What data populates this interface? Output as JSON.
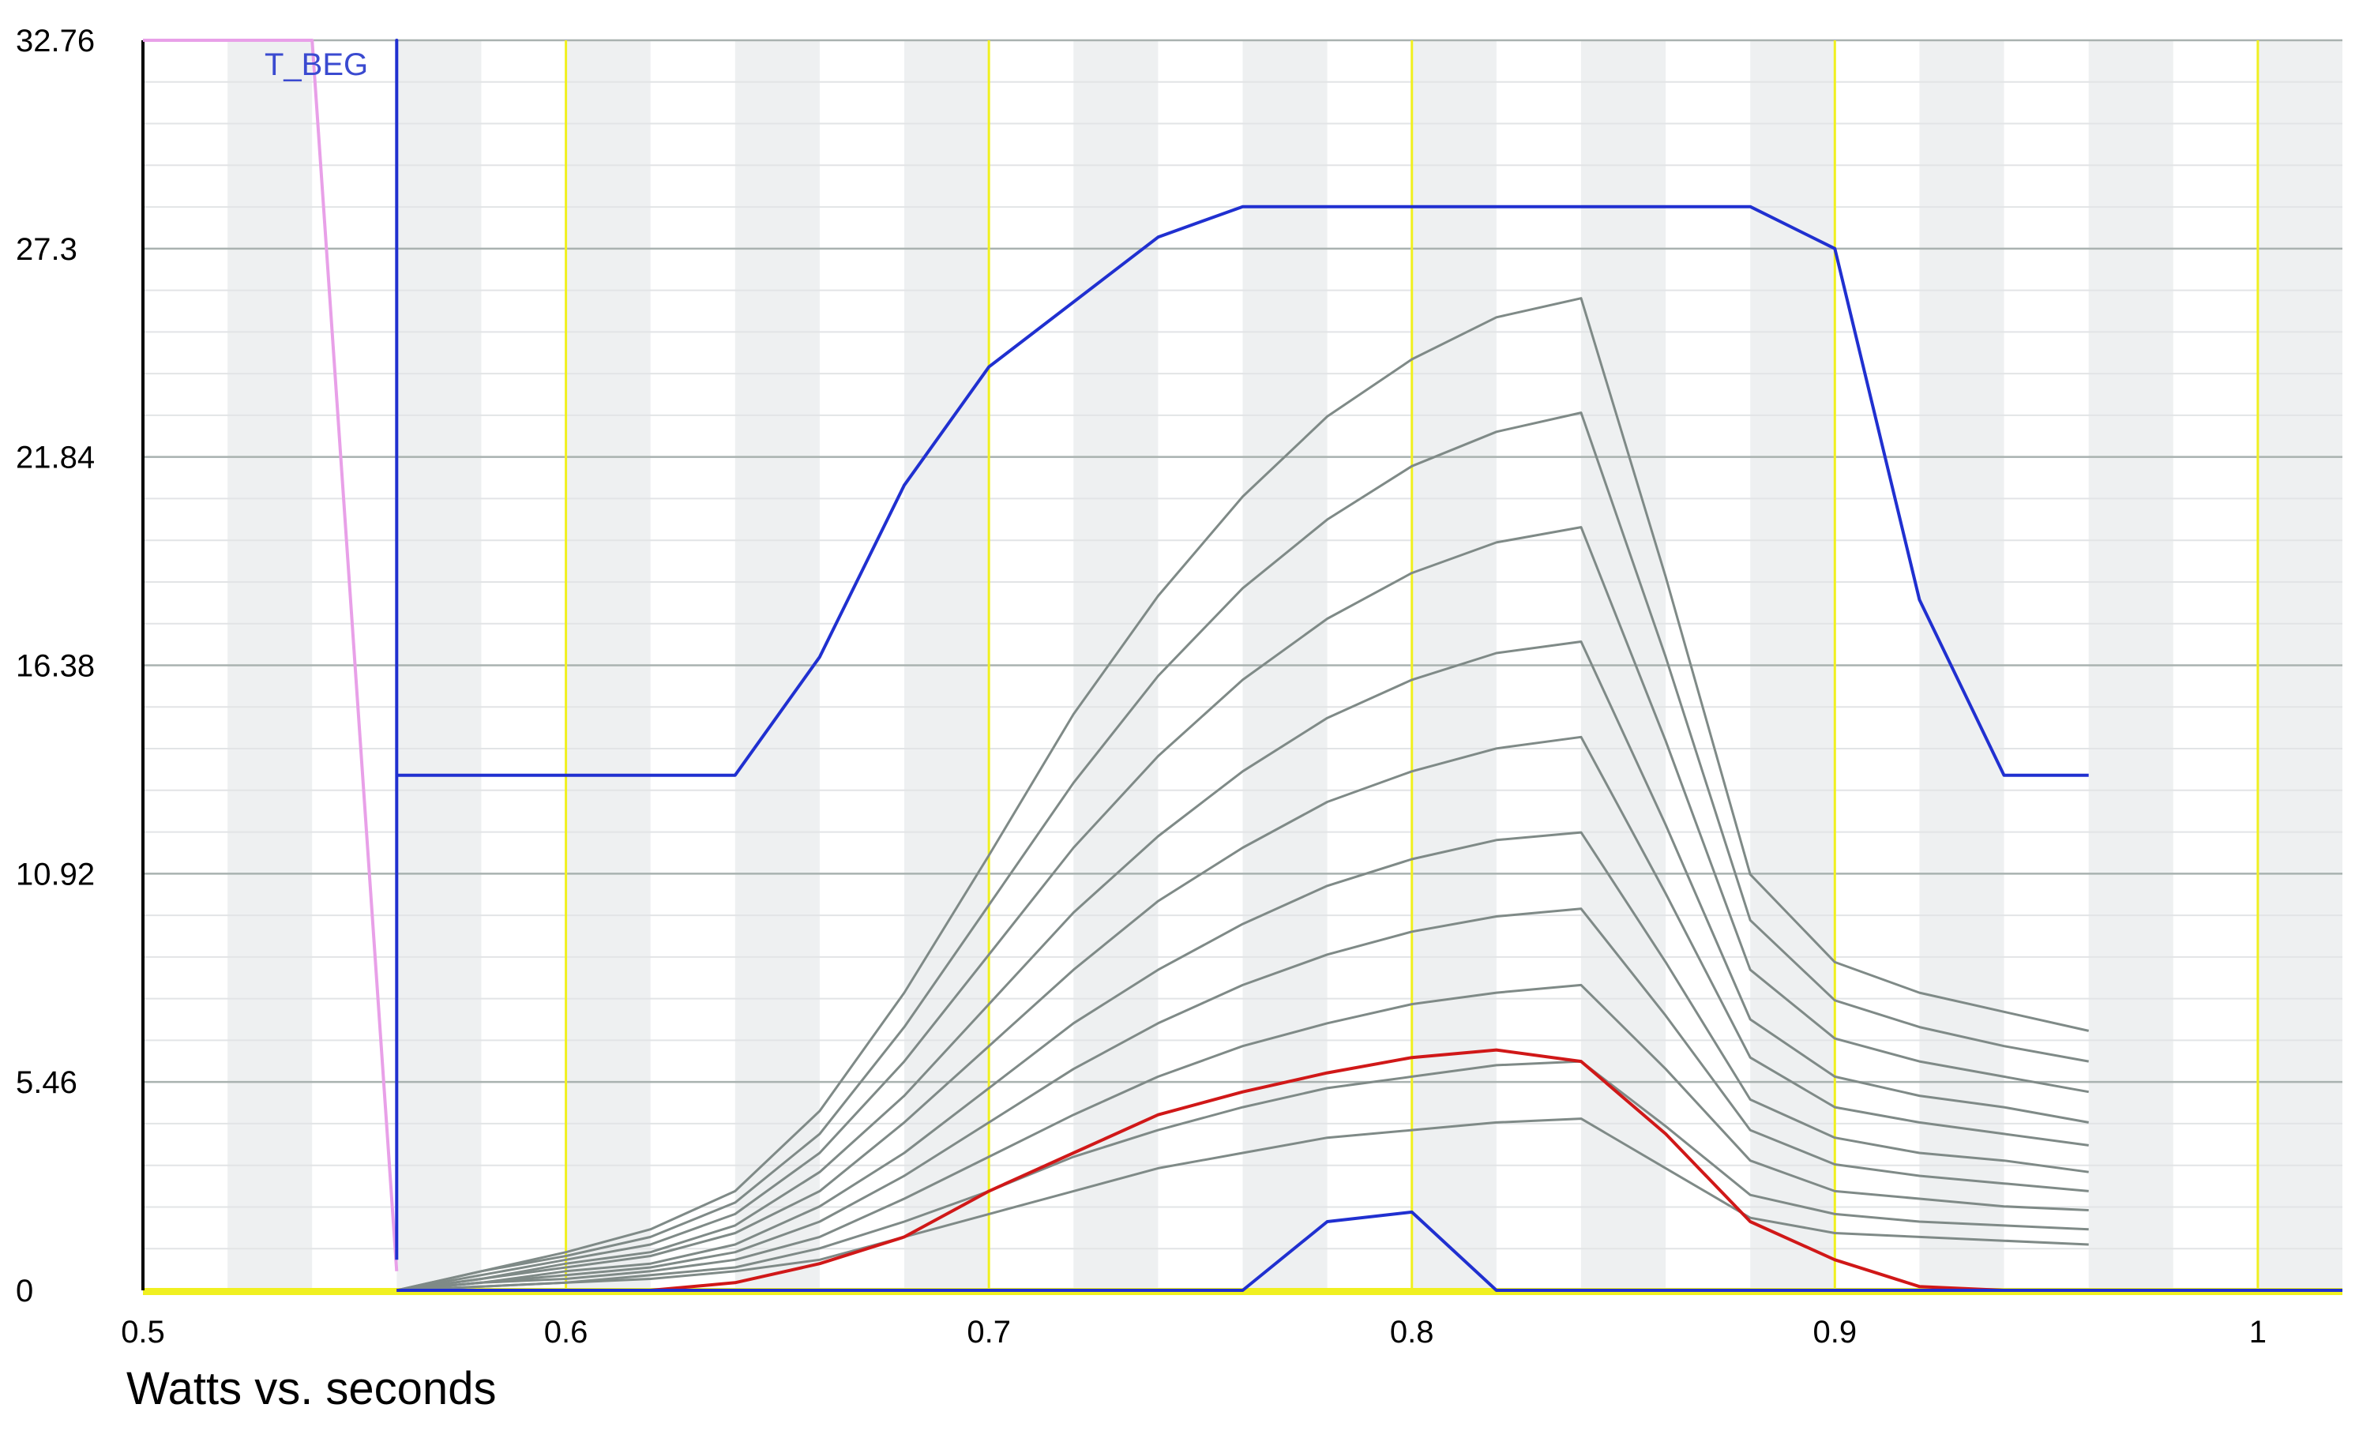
{
  "chart_data": {
    "type": "line",
    "x_label": "Watts vs. seconds",
    "annotation": "T_BEG",
    "xlim": [
      0.5,
      1.02
    ],
    "ylim": [
      0,
      32.76
    ],
    "xticks": [
      0.5,
      0.6,
      0.7,
      0.8,
      0.9,
      1
    ],
    "yticks": [
      0,
      5.46,
      10.92,
      16.38,
      21.84,
      27.3,
      32.76
    ],
    "grid": true,
    "series": [
      {
        "color": "#7f8a87",
        "x": [
          0.56,
          0.58,
          0.6,
          0.62,
          0.64,
          0.66,
          0.68,
          0.7,
          0.72,
          0.74,
          0.76,
          0.78,
          0.8,
          0.82,
          0.84,
          0.86,
          0.88,
          0.9,
          0.92,
          0.94,
          0.96
        ],
        "values": [
          0,
          0.5,
          1,
          1.6,
          2.6,
          4.7,
          7.8,
          11.4,
          15.1,
          18.2,
          20.8,
          22.9,
          24.4,
          25.5,
          26,
          18.7,
          10.9,
          8.6,
          7.8,
          7.3,
          6.8
        ]
      },
      {
        "color": "#7f8a87",
        "x": [
          0.56,
          0.58,
          0.6,
          0.62,
          0.64,
          0.66,
          0.68,
          0.7,
          0.72,
          0.74,
          0.76,
          0.78,
          0.8,
          0.82,
          0.84,
          0.86,
          0.88,
          0.9,
          0.92,
          0.94,
          0.96
        ],
        "values": [
          0,
          0.5,
          0.9,
          1.4,
          2.3,
          4.1,
          6.9,
          10.1,
          13.3,
          16.1,
          18.4,
          20.2,
          21.6,
          22.5,
          23,
          16.6,
          9.7,
          7.6,
          6.9,
          6.4,
          6
        ]
      },
      {
        "color": "#7f8a87",
        "x": [
          0.56,
          0.58,
          0.6,
          0.62,
          0.64,
          0.66,
          0.68,
          0.7,
          0.72,
          0.74,
          0.76,
          0.78,
          0.8,
          0.82,
          0.84,
          0.86,
          0.88,
          0.9,
          0.92,
          0.94,
          0.96
        ],
        "values": [
          0,
          0.4,
          0.8,
          1.2,
          2,
          3.6,
          6,
          8.8,
          11.6,
          14,
          16,
          17.6,
          18.8,
          19.6,
          20,
          14.4,
          8.4,
          6.6,
          6,
          5.6,
          5.2
        ]
      },
      {
        "color": "#7f8a87",
        "x": [
          0.56,
          0.58,
          0.6,
          0.62,
          0.64,
          0.66,
          0.68,
          0.7,
          0.72,
          0.74,
          0.76,
          0.78,
          0.8,
          0.82,
          0.84,
          0.86,
          0.88,
          0.9,
          0.92,
          0.94,
          0.96
        ],
        "values": [
          0,
          0.3,
          0.7,
          1,
          1.7,
          3.1,
          5.1,
          7.5,
          9.9,
          11.9,
          13.6,
          15,
          16,
          16.7,
          17,
          12.2,
          7.1,
          5.6,
          5.1,
          4.8,
          4.4
        ]
      },
      {
        "color": "#7f8a87",
        "x": [
          0.56,
          0.58,
          0.6,
          0.62,
          0.64,
          0.66,
          0.68,
          0.7,
          0.72,
          0.74,
          0.76,
          0.78,
          0.8,
          0.82,
          0.84,
          0.86,
          0.88,
          0.9,
          0.92,
          0.94,
          0.96
        ],
        "values": [
          0,
          0.3,
          0.6,
          0.9,
          1.5,
          2.6,
          4.4,
          6.4,
          8.4,
          10.2,
          11.6,
          12.8,
          13.6,
          14.2,
          14.5,
          10.4,
          6.1,
          4.8,
          4.4,
          4.1,
          3.8
        ]
      },
      {
        "color": "#7f8a87",
        "x": [
          0.56,
          0.58,
          0.6,
          0.62,
          0.64,
          0.66,
          0.68,
          0.7,
          0.72,
          0.74,
          0.76,
          0.78,
          0.8,
          0.82,
          0.84,
          0.86,
          0.88,
          0.9,
          0.92,
          0.94,
          0.96
        ],
        "values": [
          0,
          0.2,
          0.5,
          0.7,
          1.2,
          2.2,
          3.6,
          5.3,
          7,
          8.4,
          9.6,
          10.6,
          11.3,
          11.8,
          12,
          8.6,
          5,
          4,
          3.6,
          3.4,
          3.1
        ]
      },
      {
        "color": "#7f8a87",
        "x": [
          0.56,
          0.58,
          0.6,
          0.62,
          0.64,
          0.66,
          0.68,
          0.7,
          0.72,
          0.74,
          0.76,
          0.78,
          0.8,
          0.82,
          0.84,
          0.86,
          0.88,
          0.9,
          0.92,
          0.94,
          0.96
        ],
        "values": [
          0,
          0.2,
          0.4,
          0.6,
          1,
          1.8,
          3,
          4.4,
          5.8,
          7,
          8,
          8.8,
          9.4,
          9.8,
          10,
          7.2,
          4.2,
          3.3,
          3,
          2.8,
          2.6
        ]
      },
      {
        "color": "#7f8a87",
        "x": [
          0.56,
          0.58,
          0.6,
          0.62,
          0.64,
          0.66,
          0.68,
          0.7,
          0.72,
          0.74,
          0.76,
          0.78,
          0.8,
          0.82,
          0.84,
          0.86,
          0.88,
          0.9,
          0.92,
          0.94,
          0.96
        ],
        "values": [
          0,
          0.2,
          0.3,
          0.5,
          0.8,
          1.4,
          2.4,
          3.5,
          4.6,
          5.6,
          6.4,
          7,
          7.5,
          7.8,
          8,
          5.8,
          3.4,
          2.6,
          2.4,
          2.2,
          2.1
        ]
      },
      {
        "color": "#7f8a87",
        "x": [
          0.56,
          0.58,
          0.6,
          0.62,
          0.64,
          0.66,
          0.68,
          0.7,
          0.72,
          0.74,
          0.76,
          0.78,
          0.8,
          0.82,
          0.84,
          0.86,
          0.88,
          0.9,
          0.92,
          0.94,
          0.96
        ],
        "values": [
          0,
          0.1,
          0.2,
          0.4,
          0.6,
          1.1,
          1.8,
          2.6,
          3.5,
          4.2,
          4.8,
          5.3,
          5.6,
          5.9,
          6,
          4.3,
          2.5,
          2,
          1.8,
          1.7,
          1.6
        ]
      },
      {
        "color": "#7f8a87",
        "x": [
          0.56,
          0.58,
          0.6,
          0.62,
          0.64,
          0.66,
          0.68,
          0.7,
          0.72,
          0.74,
          0.76,
          0.78,
          0.8,
          0.82,
          0.84,
          0.86,
          0.88,
          0.9,
          0.92,
          0.94,
          0.96
        ],
        "values": [
          0,
          0.1,
          0.2,
          0.3,
          0.5,
          0.8,
          1.4,
          2,
          2.6,
          3.2,
          3.6,
          4,
          4.2,
          4.4,
          4.5,
          3.2,
          1.9,
          1.5,
          1.4,
          1.3,
          1.2
        ]
      },
      {
        "color": "#e8a0e8",
        "x": [
          0.5,
          0.54,
          0.56
        ],
        "values": [
          32.76,
          32.76,
          0.5
        ]
      },
      {
        "color": "#d01818",
        "x": [
          0.56,
          0.62,
          0.64,
          0.66,
          0.68,
          0.7,
          0.72,
          0.74,
          0.76,
          0.78,
          0.8,
          0.82,
          0.84,
          0.86,
          0.88,
          0.9,
          0.92,
          0.94,
          0.96
        ],
        "values": [
          0,
          0,
          0.2,
          0.7,
          1.4,
          2.6,
          3.6,
          4.6,
          5.2,
          5.7,
          6.1,
          6.3,
          6,
          4.1,
          1.8,
          0.8,
          0.1,
          0,
          0
        ]
      },
      {
        "color": "#2030d0",
        "x": [
          0.56,
          0.76,
          0.78,
          0.8,
          0.82,
          1.02
        ],
        "values": [
          0,
          0,
          1.8,
          2.05,
          0,
          0
        ]
      },
      {
        "color": "#2030d0",
        "x": [
          0.56,
          0.56,
          0.56,
          0.64,
          0.66,
          0.68,
          0.7,
          0.74,
          0.76,
          0.88,
          0.9,
          0.92,
          0.94,
          0.96
        ],
        "values": [
          0.8,
          32.76,
          13.5,
          13.5,
          16.6,
          21.1,
          24.2,
          27.6,
          28.4,
          28.4,
          27.3,
          18.1,
          13.5,
          13.5
        ]
      }
    ]
  }
}
